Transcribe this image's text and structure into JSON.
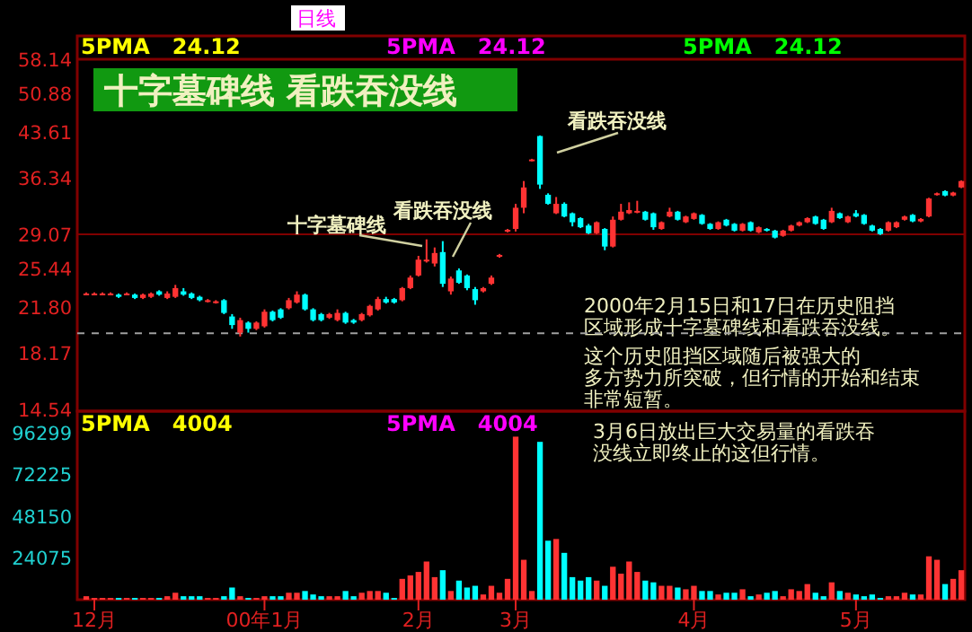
{
  "chart_data": [
    {
      "type": "candlestick",
      "title": "十字墓碑线 看跌吞没线",
      "annotations": [
        "日线",
        "5PMA   24.12",
        "5PMA   24.12",
        "5PMA   24.12",
        "十字墓碑线",
        "看跌吞没线",
        "看跌吞没线",
        "2000年2月15日和17日在历史阻挡区域形成十字墓碑线和看跌吞没线。",
        "这个历史阻挡区域随后被强大的多方势力所突破，但行情的开始和结束非常短暂。"
      ],
      "categories": [
        null,
        null,
        null,
        null,
        null,
        null,
        null,
        null,
        null,
        null,
        null,
        null,
        null,
        null,
        null,
        null,
        null,
        null,
        null,
        null,
        null,
        null,
        null,
        null,
        null,
        null,
        null,
        null,
        null,
        null,
        null,
        null,
        null,
        null,
        null,
        null,
        null,
        null,
        null,
        null,
        null,
        null,
        null,
        null,
        null,
        null,
        null,
        null,
        null,
        null,
        null,
        null,
        null,
        null,
        null,
        null,
        null,
        null,
        null,
        null,
        null,
        null,
        null,
        null,
        null,
        null,
        null,
        null,
        null,
        null,
        null,
        null,
        null,
        null,
        null,
        null,
        null,
        null,
        null,
        null,
        null,
        null,
        null,
        null,
        null,
        null,
        null,
        null,
        null,
        null,
        null,
        null,
        null,
        null,
        null,
        null,
        null,
        null,
        null,
        null,
        null,
        null,
        null,
        null,
        null,
        null,
        null,
        null,
        null
      ],
      "ohlc": [
        [
          23.0,
          23.1,
          22.9,
          23.0
        ],
        [
          23.0,
          23.1,
          22.9,
          23.0
        ],
        [
          23.0,
          23.1,
          22.9,
          23.0
        ],
        [
          23.0,
          23.1,
          22.9,
          23.0
        ],
        [
          22.9,
          23.0,
          22.6,
          22.7
        ],
        [
          23.0,
          23.1,
          22.9,
          23.0
        ],
        [
          22.9,
          23.0,
          22.5,
          22.6
        ],
        [
          22.6,
          23.0,
          22.5,
          22.9
        ],
        [
          22.7,
          23.1,
          22.6,
          23.0
        ],
        [
          23.2,
          23.3,
          22.8,
          22.9
        ],
        [
          22.6,
          23.2,
          22.5,
          23.0
        ],
        [
          22.7,
          23.8,
          22.6,
          23.5
        ],
        [
          23.2,
          23.5,
          22.8,
          22.9
        ],
        [
          23.0,
          23.1,
          22.5,
          22.6
        ],
        [
          22.7,
          22.8,
          22.3,
          22.4
        ],
        [
          22.3,
          22.5,
          22.2,
          22.4
        ],
        [
          22.2,
          22.4,
          22.1,
          22.3
        ],
        [
          22.4,
          22.5,
          21.2,
          21.3
        ],
        [
          21.0,
          21.2,
          20.0,
          20.3
        ],
        [
          19.7,
          20.9,
          19.4,
          20.7
        ],
        [
          20.5,
          20.6,
          19.7,
          20.0
        ],
        [
          20.0,
          20.6,
          19.9,
          20.5
        ],
        [
          20.2,
          21.6,
          20.1,
          21.4
        ],
        [
          21.4,
          21.5,
          20.6,
          20.7
        ],
        [
          21.6,
          21.7,
          20.8,
          20.9
        ],
        [
          21.7,
          22.6,
          21.6,
          22.4
        ],
        [
          22.2,
          23.2,
          22.1,
          22.9
        ],
        [
          22.9,
          23.0,
          21.5,
          21.6
        ],
        [
          21.6,
          21.7,
          20.6,
          20.7
        ],
        [
          21.2,
          21.3,
          20.6,
          20.7
        ],
        [
          20.9,
          21.3,
          20.8,
          21.2
        ],
        [
          20.7,
          21.6,
          20.6,
          21.3
        ],
        [
          21.3,
          21.4,
          20.4,
          20.5
        ],
        [
          20.7,
          20.8,
          20.4,
          20.5
        ],
        [
          20.7,
          21.3,
          20.6,
          21.2
        ],
        [
          21.1,
          22.0,
          21.0,
          21.9
        ],
        [
          21.6,
          22.7,
          21.5,
          22.5
        ],
        [
          22.5,
          22.7,
          22.1,
          22.2
        ],
        [
          22.5,
          22.6,
          22.1,
          22.2
        ],
        [
          22.4,
          23.6,
          22.3,
          23.5
        ],
        [
          23.5,
          24.7,
          23.4,
          24.5
        ],
        [
          24.7,
          26.7,
          24.6,
          26.3
        ],
        [
          26.2,
          28.5,
          26.0,
          26.3
        ],
        [
          25.9,
          27.6,
          25.6,
          27.0
        ],
        [
          27.1,
          28.3,
          23.6,
          23.9
        ],
        [
          23.2,
          24.6,
          22.9,
          24.4
        ],
        [
          25.2,
          25.4,
          23.9,
          24.0
        ],
        [
          24.7,
          24.8,
          23.3,
          23.5
        ],
        [
          23.4,
          23.6,
          22.0,
          22.4
        ],
        [
          23.2,
          23.6,
          23.1,
          23.5
        ],
        [
          23.9,
          24.7,
          23.8,
          24.5
        ],
        [
          26.6,
          26.9,
          26.5,
          26.8
        ],
        [
          29.4,
          29.7,
          29.3,
          29.6
        ],
        [
          29.7,
          32.8,
          29.4,
          32.3
        ],
        [
          32.3,
          35.9,
          31.6,
          35.0
        ],
        [
          38.9,
          39.2,
          38.8,
          39.1
        ],
        [
          42.9,
          43.0,
          34.8,
          35.4
        ],
        [
          34.0,
          34.2,
          32.7,
          32.8
        ],
        [
          31.6,
          33.7,
          31.5,
          32.8
        ],
        [
          32.8,
          33.0,
          31.1,
          31.2
        ],
        [
          31.6,
          31.7,
          30.0,
          30.5
        ],
        [
          31.0,
          31.1,
          29.8,
          29.9
        ],
        [
          30.1,
          30.3,
          29.1,
          29.2
        ],
        [
          29.2,
          30.6,
          29.1,
          30.5
        ],
        [
          29.7,
          29.8,
          27.3,
          27.7
        ],
        [
          27.7,
          31.2,
          27.6,
          30.8
        ],
        [
          30.8,
          32.8,
          30.7,
          31.8
        ],
        [
          31.6,
          33.0,
          31.5,
          32.0
        ],
        [
          31.7,
          33.2,
          31.6,
          31.9
        ],
        [
          31.8,
          31.9,
          30.7,
          30.8
        ],
        [
          31.6,
          31.7,
          29.6,
          29.9
        ],
        [
          29.7,
          30.6,
          29.6,
          30.5
        ],
        [
          31.2,
          32.3,
          31.1,
          31.8
        ],
        [
          31.8,
          31.9,
          30.7,
          30.8
        ],
        [
          30.5,
          31.3,
          30.4,
          31.2
        ],
        [
          30.9,
          31.7,
          30.8,
          31.6
        ],
        [
          31.4,
          31.5,
          30.2,
          30.3
        ],
        [
          30.3,
          30.4,
          29.6,
          29.7
        ],
        [
          29.7,
          30.6,
          29.6,
          30.5
        ],
        [
          30.8,
          30.9,
          30.0,
          30.1
        ],
        [
          30.3,
          30.4,
          29.4,
          29.5
        ],
        [
          29.5,
          30.4,
          29.4,
          30.3
        ],
        [
          30.5,
          30.6,
          29.4,
          29.5
        ],
        [
          29.3,
          30.0,
          29.2,
          29.9
        ],
        [
          29.7,
          29.8,
          29.4,
          29.5
        ],
        [
          29.5,
          29.6,
          28.6,
          28.7
        ],
        [
          28.9,
          29.6,
          28.8,
          29.5
        ],
        [
          29.5,
          30.2,
          29.4,
          30.1
        ],
        [
          30.1,
          30.6,
          30.0,
          30.5
        ],
        [
          30.5,
          31.1,
          30.4,
          31.0
        ],
        [
          31.2,
          31.3,
          30.2,
          30.3
        ],
        [
          30.8,
          30.9,
          29.6,
          29.7
        ],
        [
          30.5,
          32.3,
          30.4,
          31.9
        ],
        [
          31.6,
          31.7,
          30.9,
          31.0
        ],
        [
          30.5,
          31.3,
          30.4,
          31.2
        ],
        [
          31.6,
          32.0,
          31.1,
          31.2
        ],
        [
          31.4,
          31.5,
          30.2,
          30.3
        ],
        [
          30.1,
          30.2,
          29.4,
          29.5
        ],
        [
          29.7,
          29.8,
          29.0,
          29.1
        ],
        [
          29.5,
          30.6,
          29.4,
          30.5
        ],
        [
          29.9,
          30.6,
          29.8,
          30.5
        ],
        [
          30.8,
          31.3,
          30.7,
          31.2
        ],
        [
          31.4,
          31.5,
          30.5,
          30.6
        ],
        [
          30.6,
          31.0,
          30.5,
          30.9
        ],
        [
          31.2,
          33.6,
          31.1,
          33.5
        ],
        [
          34.0,
          34.3,
          33.9,
          34.2
        ],
        [
          34.5,
          34.6,
          33.8,
          33.9
        ],
        [
          33.9,
          34.4,
          33.8,
          34.3
        ],
        [
          35.0,
          36.0,
          34.9,
          35.9
        ]
      ],
      "colors": [
        "#ff3333",
        "#ff3333",
        "#ff3333",
        "#ff3333",
        "#00ffff",
        "#ff3333",
        "#00ffff",
        "#ff3333",
        "#ff3333",
        "#00ffff",
        "#ff3333",
        "#ff3333",
        "#00ffff",
        "#00ffff",
        "#00ffff",
        "#ff3333",
        "#ff3333",
        "#00ffff",
        "#00ffff",
        "#ff3333",
        "#00ffff",
        "#ff3333",
        "#ff3333",
        "#00ffff",
        "#00ffff",
        "#ff3333",
        "#ff3333",
        "#00ffff",
        "#00ffff",
        "#00ffff",
        "#ff3333",
        "#ff3333",
        "#00ffff",
        "#00ffff",
        "#ff3333",
        "#ff3333",
        "#ff3333",
        "#00ffff",
        "#00ffff",
        "#ff3333",
        "#ff3333",
        "#ff3333",
        "#ff3333",
        "#ff3333",
        "#00ffff",
        "#ff3333",
        "#00ffff",
        "#00ffff",
        "#00ffff",
        "#ff3333",
        "#ff3333",
        "#ff3333",
        "#ff3333",
        "#ff3333",
        "#ff3333",
        "#ff3333",
        "#00ffff",
        "#00ffff",
        "#ff3333",
        "#00ffff",
        "#00ffff",
        "#00ffff",
        "#00ffff",
        "#ff3333",
        "#00ffff",
        "#ff3333",
        "#ff3333",
        "#ff3333",
        "#ff3333",
        "#00ffff",
        "#00ffff",
        "#ff3333",
        "#ff3333",
        "#00ffff",
        "#ff3333",
        "#ff3333",
        "#00ffff",
        "#00ffff",
        "#ff3333",
        "#00ffff",
        "#00ffff",
        "#ff3333",
        "#00ffff",
        "#ff3333",
        "#00ffff",
        "#00ffff",
        "#ff3333",
        "#ff3333",
        "#ff3333",
        "#ff3333",
        "#00ffff",
        "#00ffff",
        "#ff3333",
        "#00ffff",
        "#ff3333",
        "#00ffff",
        "#00ffff",
        "#00ffff",
        "#00ffff",
        "#ff3333",
        "#ff3333",
        "#ff3333",
        "#00ffff",
        "#ff3333",
        "#ff3333",
        "#ff3333",
        "#00ffff",
        "#ff3333",
        "#ff3333"
      ],
      "ylim": [
        14.54,
        58.14
      ],
      "log": true,
      "yticks": [
        14.54,
        18.17,
        {
          "value": 21.8,
          "label": "21.80"
        },
        25.44,
        29.07,
        36.34,
        43.61,
        50.88,
        58.14
      ],
      "ref_lines": [
        {
          "axis": "y",
          "value": 29.07,
          "color": "#800000",
          "line_style": "solid"
        },
        {
          "axis": "y",
          "value": 19.65,
          "color": "#a0a0a0",
          "line_style": "dashed"
        }
      ],
      "tick_labels": "y"
    },
    {
      "type": "bar",
      "annotations": [
        "5PMA   4004",
        "5PMA   4004",
        "3月6日放出巨大交易量的看跌吞没线立即终止的这但行情。"
      ],
      "categories": [
        null,
        "12月",
        null,
        null,
        null,
        null,
        null,
        null,
        null,
        null,
        null,
        null,
        null,
        null,
        null,
        null,
        null,
        null,
        null,
        null,
        null,
        null,
        "00年1月",
        null,
        null,
        null,
        null,
        null,
        null,
        null,
        null,
        null,
        null,
        null,
        null,
        null,
        null,
        null,
        null,
        null,
        null,
        "2月",
        null,
        null,
        null,
        null,
        null,
        null,
        null,
        null,
        null,
        null,
        null,
        "3月",
        null,
        null,
        null,
        null,
        null,
        null,
        null,
        null,
        null,
        null,
        null,
        null,
        null,
        null,
        null,
        null,
        null,
        null,
        null,
        null,
        null,
        "4月",
        null,
        null,
        null,
        null,
        null,
        null,
        null,
        null,
        null,
        null,
        null,
        null,
        null,
        null,
        null,
        null,
        null,
        null,
        null,
        "5月",
        null,
        null,
        null,
        null,
        null,
        null,
        null,
        null,
        null,
        null,
        null,
        null,
        null
      ],
      "values": [
        2000,
        1000,
        1000,
        1000,
        1000,
        1000,
        1000,
        1000,
        1000,
        1000,
        2000,
        4000,
        2000,
        2000,
        2000,
        1000,
        1000,
        2000,
        7000,
        2000,
        1000,
        1000,
        2000,
        2000,
        2000,
        4000,
        4000,
        5000,
        3000,
        2000,
        2000,
        2000,
        5000,
        2000,
        4000,
        5000,
        5000,
        4000,
        1000,
        12000,
        14000,
        16000,
        22000,
        13000,
        17000,
        5000,
        11000,
        7000,
        8000,
        3000,
        8000,
        4000,
        12000,
        94000,
        23000,
        5000,
        91000,
        34000,
        35000,
        27000,
        13000,
        11000,
        13000,
        11000,
        8000,
        19000,
        15000,
        22000,
        16000,
        11000,
        10000,
        8000,
        8000,
        7000,
        6000,
        8000,
        5000,
        5000,
        3000,
        4000,
        4000,
        6000,
        2000,
        3000,
        4000,
        5000,
        2000,
        6000,
        5000,
        9000,
        4000,
        2000,
        10000,
        5000,
        4000,
        3000,
        2000,
        3000,
        1000,
        2000,
        2000,
        4000,
        3000,
        3000,
        25000,
        23000,
        9000,
        12000,
        17000
      ],
      "colors": [
        "#ff3333",
        "#ff3333",
        "#ff3333",
        "#ff3333",
        "#00ffff",
        "#ff3333",
        "#00ffff",
        "#ff3333",
        "#ff3333",
        "#00ffff",
        "#ff3333",
        "#ff3333",
        "#00ffff",
        "#00ffff",
        "#00ffff",
        "#ff3333",
        "#ff3333",
        "#00ffff",
        "#00ffff",
        "#ff3333",
        "#00ffff",
        "#ff3333",
        "#ff3333",
        "#00ffff",
        "#00ffff",
        "#ff3333",
        "#ff3333",
        "#00ffff",
        "#00ffff",
        "#00ffff",
        "#ff3333",
        "#ff3333",
        "#00ffff",
        "#00ffff",
        "#ff3333",
        "#ff3333",
        "#ff3333",
        "#00ffff",
        "#00ffff",
        "#ff3333",
        "#ff3333",
        "#ff3333",
        "#ff3333",
        "#ff3333",
        "#00ffff",
        "#ff3333",
        "#00ffff",
        "#00ffff",
        "#00ffff",
        "#ff3333",
        "#ff3333",
        "#ff3333",
        "#ff3333",
        "#ff3333",
        "#ff3333",
        "#ff3333",
        "#00ffff",
        "#00ffff",
        "#ff3333",
        "#00ffff",
        "#00ffff",
        "#00ffff",
        "#00ffff",
        "#ff3333",
        "#00ffff",
        "#ff3333",
        "#ff3333",
        "#ff3333",
        "#ff3333",
        "#00ffff",
        "#00ffff",
        "#ff3333",
        "#ff3333",
        "#00ffff",
        "#ff3333",
        "#ff3333",
        "#00ffff",
        "#00ffff",
        "#ff3333",
        "#00ffff",
        "#00ffff",
        "#ff3333",
        "#00ffff",
        "#ff3333",
        "#00ffff",
        "#00ffff",
        "#ff3333",
        "#ff3333",
        "#ff3333",
        "#ff3333",
        "#00ffff",
        "#00ffff",
        "#ff3333",
        "#00ffff",
        "#ff3333",
        "#00ffff",
        "#00ffff",
        "#00ffff",
        "#00ffff",
        "#ff3333",
        "#ff3333",
        "#ff3333",
        "#00ffff",
        "#ff3333",
        "#ff3333",
        "#ff3333",
        "#00ffff",
        "#ff3333",
        "#ff3333"
      ],
      "ylim": [
        0,
        108700
      ],
      "yticks": [
        24075,
        48150,
        72225,
        96299
      ]
    }
  ]
}
